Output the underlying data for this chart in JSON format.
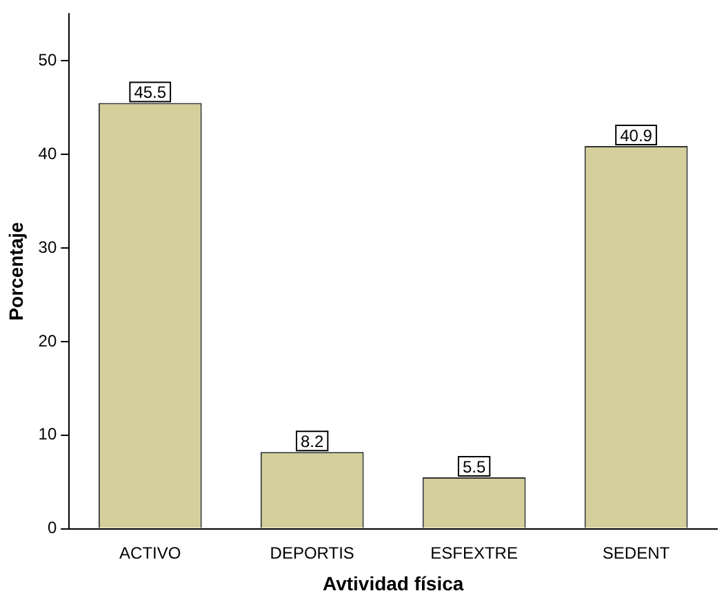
{
  "chart_data": {
    "type": "bar",
    "xlabel": "Avtividad física",
    "ylabel": "Porcentaje",
    "categories": [
      "ACTIVO",
      "DEPORTIS",
      "ESFEXTRE",
      "SEDENT"
    ],
    "values": [
      45.5,
      8.2,
      5.5,
      40.9
    ],
    "color": "#d4cf9b",
    "ylim": [
      0,
      55
    ],
    "yticks": [
      0,
      10,
      20,
      30,
      40,
      50
    ],
    "grid": false,
    "legend": false,
    "data_labels": true
  }
}
